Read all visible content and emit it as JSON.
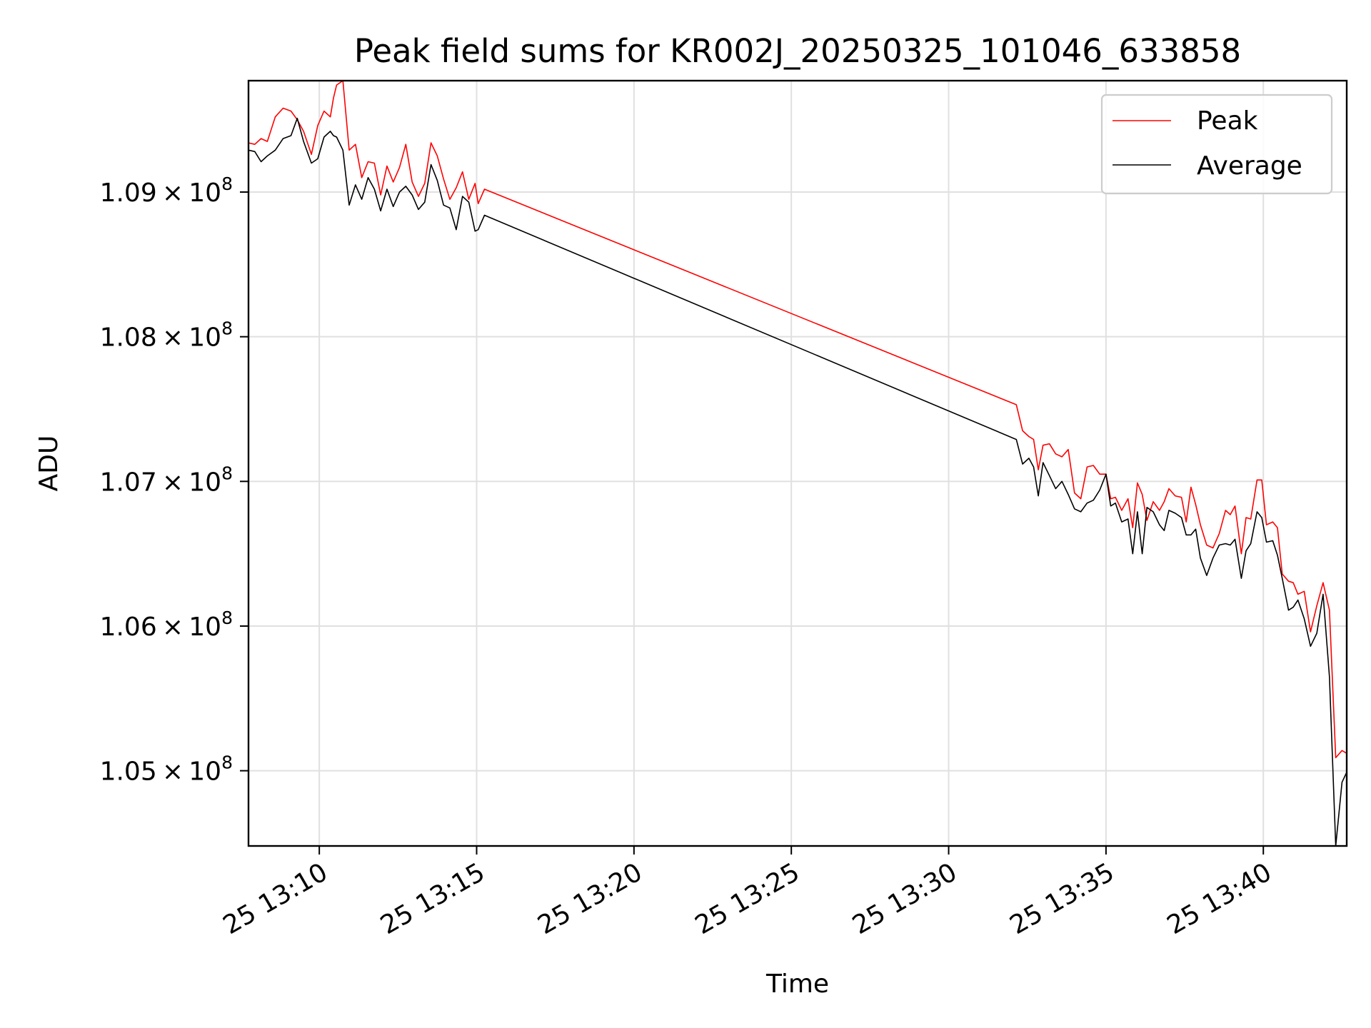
{
  "chart_data": {
    "type": "line",
    "title": "Peak field sums for KR002J_20250325_101046_633858",
    "xlabel": "Time",
    "ylabel": "ADU",
    "x_unit": "minutes after 25 13:00",
    "xlim": [
      7.75,
      42.65
    ],
    "ylim": [
      104480000,
      109770000
    ],
    "x_ticks": [
      {
        "value": 10,
        "label": "25 13:10"
      },
      {
        "value": 15,
        "label": "25 13:15"
      },
      {
        "value": 20,
        "label": "25 13:20"
      },
      {
        "value": 25,
        "label": "25 13:25"
      },
      {
        "value": 30,
        "label": "25 13:30"
      },
      {
        "value": 35,
        "label": "25 13:35"
      },
      {
        "value": 40,
        "label": "25 13:40"
      }
    ],
    "y_ticks": [
      {
        "value": 105000000,
        "mantissa": "1.05",
        "base": "10",
        "exponent": "8"
      },
      {
        "value": 106000000,
        "mantissa": "1.06",
        "base": "10",
        "exponent": "8"
      },
      {
        "value": 107000000,
        "mantissa": "1.07",
        "base": "10",
        "exponent": "8"
      },
      {
        "value": 108000000,
        "mantissa": "1.08",
        "base": "10",
        "exponent": "8"
      },
      {
        "value": 109000000,
        "mantissa": "1.09",
        "base": "10",
        "exponent": "8"
      }
    ],
    "grid": true,
    "legend_position": "top-right",
    "series": [
      {
        "name": "Peak",
        "color": "#ff0000",
        "x": [
          7.75,
          7.95,
          8.15,
          8.35,
          8.6,
          8.85,
          9.1,
          9.3,
          9.5,
          9.75,
          9.95,
          10.15,
          10.35,
          10.45,
          10.55,
          10.75,
          10.95,
          11.15,
          11.35,
          11.55,
          11.75,
          11.95,
          12.15,
          12.35,
          12.55,
          12.75,
          12.95,
          13.15,
          13.35,
          13.55,
          13.75,
          13.95,
          14.15,
          14.35,
          14.55,
          14.75,
          14.95,
          15.05,
          15.25,
          32.15,
          32.35,
          32.55,
          32.7,
          32.85,
          33.0,
          33.2,
          33.4,
          33.6,
          33.8,
          34.0,
          34.2,
          34.4,
          34.6,
          34.8,
          35.0,
          35.15,
          35.3,
          35.5,
          35.7,
          35.85,
          36.0,
          36.15,
          36.3,
          36.5,
          36.7,
          36.85,
          37.0,
          37.2,
          37.4,
          37.55,
          37.7,
          37.85,
          38.0,
          38.2,
          38.4,
          38.6,
          38.8,
          38.95,
          39.1,
          39.3,
          39.45,
          39.6,
          39.8,
          39.95,
          40.1,
          40.3,
          40.45,
          40.6,
          40.8,
          40.95,
          41.1,
          41.3,
          41.5,
          41.7,
          41.9,
          42.1,
          42.3,
          42.5,
          42.65
        ],
        "values": [
          109340000,
          109330000,
          109370000,
          109350000,
          109520000,
          109580000,
          109560000,
          109500000,
          109420000,
          109260000,
          109460000,
          109560000,
          109520000,
          109650000,
          109740000,
          109770000,
          109290000,
          109330000,
          109100000,
          109210000,
          109200000,
          108980000,
          109180000,
          109070000,
          109170000,
          109330000,
          109070000,
          108970000,
          109060000,
          109340000,
          109250000,
          109090000,
          108950000,
          109030000,
          109140000,
          108950000,
          109060000,
          108920000,
          109020000,
          107530000,
          107350000,
          107310000,
          107290000,
          107080000,
          107250000,
          107260000,
          107190000,
          107170000,
          107220000,
          106920000,
          106880000,
          107100000,
          107110000,
          107050000,
          107050000,
          106880000,
          106890000,
          106800000,
          106880000,
          106680000,
          106990000,
          106910000,
          106730000,
          106860000,
          106800000,
          106860000,
          106950000,
          106900000,
          106890000,
          106720000,
          106960000,
          106840000,
          106700000,
          106560000,
          106540000,
          106640000,
          106800000,
          106770000,
          106830000,
          106500000,
          106750000,
          106740000,
          107010000,
          107010000,
          106700000,
          106720000,
          106680000,
          106360000,
          106310000,
          106300000,
          106220000,
          106240000,
          105960000,
          106140000,
          106300000,
          106110000,
          105090000,
          105140000,
          105120000
        ]
      },
      {
        "name": "Average",
        "color": "#000000",
        "x": [
          7.75,
          7.95,
          8.15,
          8.35,
          8.6,
          8.85,
          9.1,
          9.3,
          9.5,
          9.75,
          9.95,
          10.15,
          10.35,
          10.45,
          10.55,
          10.75,
          10.95,
          11.15,
          11.35,
          11.55,
          11.75,
          11.95,
          12.15,
          12.35,
          12.55,
          12.75,
          12.95,
          13.15,
          13.35,
          13.55,
          13.75,
          13.95,
          14.15,
          14.35,
          14.55,
          14.75,
          14.95,
          15.05,
          15.25,
          32.15,
          32.35,
          32.55,
          32.7,
          32.85,
          33.0,
          33.2,
          33.4,
          33.6,
          33.8,
          34.0,
          34.2,
          34.4,
          34.6,
          34.8,
          35.0,
          35.15,
          35.3,
          35.5,
          35.7,
          35.85,
          36.0,
          36.15,
          36.3,
          36.5,
          36.7,
          36.85,
          37.0,
          37.2,
          37.4,
          37.55,
          37.7,
          37.85,
          38.0,
          38.2,
          38.4,
          38.6,
          38.8,
          38.95,
          39.1,
          39.3,
          39.45,
          39.6,
          39.8,
          39.95,
          40.1,
          40.3,
          40.45,
          40.6,
          40.8,
          40.95,
          41.1,
          41.3,
          41.5,
          41.7,
          41.9,
          42.1,
          42.3,
          42.5,
          42.65
        ],
        "values": [
          109290000,
          109280000,
          109210000,
          109250000,
          109290000,
          109370000,
          109390000,
          109510000,
          109350000,
          109200000,
          109230000,
          109380000,
          109420000,
          109390000,
          109380000,
          109290000,
          108910000,
          109050000,
          108950000,
          109100000,
          109020000,
          108870000,
          109020000,
          108900000,
          109000000,
          109040000,
          108980000,
          108880000,
          108930000,
          109190000,
          109080000,
          108910000,
          108890000,
          108740000,
          108970000,
          108930000,
          108730000,
          108740000,
          108840000,
          107290000,
          107120000,
          107160000,
          107100000,
          106900000,
          107130000,
          107040000,
          106950000,
          107000000,
          106910000,
          106810000,
          106790000,
          106850000,
          106870000,
          106940000,
          107050000,
          106830000,
          106850000,
          106720000,
          106740000,
          106500000,
          106790000,
          106500000,
          106820000,
          106790000,
          106700000,
          106660000,
          106800000,
          106780000,
          106750000,
          106630000,
          106630000,
          106670000,
          106470000,
          106350000,
          106470000,
          106560000,
          106570000,
          106560000,
          106600000,
          106330000,
          106520000,
          106570000,
          106790000,
          106750000,
          106580000,
          106590000,
          106490000,
          106330000,
          106110000,
          106130000,
          106180000,
          106050000,
          105860000,
          105950000,
          106220000,
          105650000,
          104480000,
          104920000,
          104990000
        ]
      }
    ]
  }
}
